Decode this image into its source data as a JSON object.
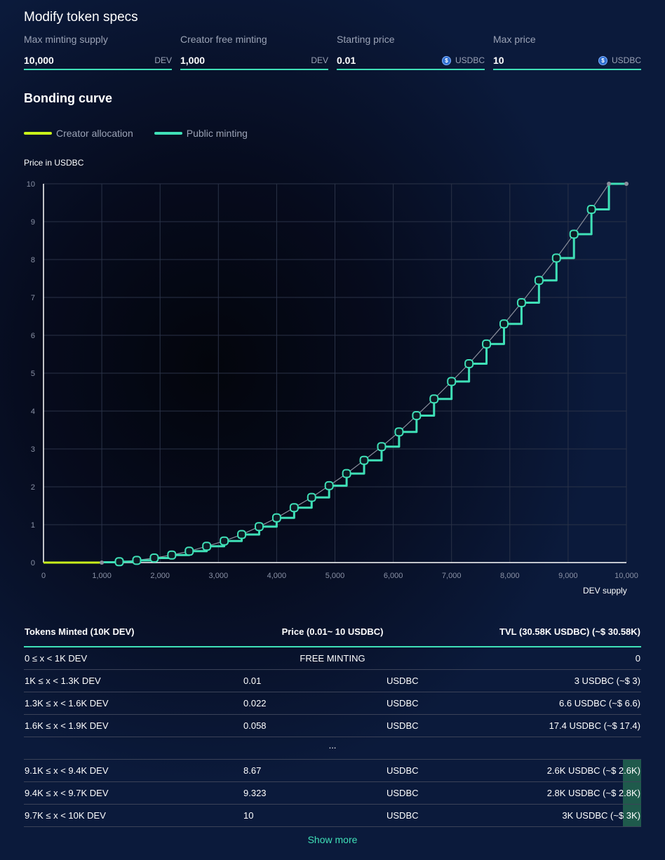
{
  "spec": {
    "title": "Modify token specs",
    "fields": [
      {
        "label": "Max minting supply",
        "value": "10,000",
        "unit": "DEV",
        "coin": false
      },
      {
        "label": "Creator free minting",
        "value": "1,000",
        "unit": "DEV",
        "coin": false
      },
      {
        "label": "Starting price",
        "value": "0.01",
        "unit": "USDBC",
        "coin": true
      },
      {
        "label": "Max price",
        "value": "10",
        "unit": "USDBC",
        "coin": true
      }
    ]
  },
  "curve": {
    "title": "Bonding curve",
    "legend": [
      {
        "label": "Creator allocation",
        "color": "#c9f21a"
      },
      {
        "label": "Public minting",
        "color": "#3fe0b7"
      }
    ]
  },
  "chart_data": {
    "type": "line",
    "ylabel": "Price in USDBC",
    "xlabel": "DEV supply",
    "xlim": [
      0,
      10000
    ],
    "ylim": [
      0,
      10
    ],
    "x_ticks": [
      "0",
      "1,000",
      "2,000",
      "3,000",
      "4,000",
      "5,000",
      "6,000",
      "7,000",
      "8,000",
      "9,000",
      "10,000"
    ],
    "y_ticks": [
      "0",
      "1",
      "2",
      "3",
      "4",
      "5",
      "6",
      "7",
      "8",
      "9",
      "10"
    ],
    "grid": true,
    "series": [
      {
        "name": "Creator allocation",
        "x": [
          0,
          1000
        ],
        "y": [
          0,
          0
        ]
      },
      {
        "name": "Public minting",
        "step_width": 300,
        "x": [
          1000,
          1300,
          1600,
          1900,
          2200,
          2500,
          2800,
          3100,
          3400,
          3700,
          4000,
          4300,
          4600,
          4900,
          5200,
          5500,
          5800,
          6100,
          6400,
          6700,
          7000,
          7300,
          7600,
          7900,
          8200,
          8500,
          8800,
          9100,
          9400,
          9700
        ],
        "y": [
          0.01,
          0.022,
          0.058,
          0.12,
          0.2,
          0.3,
          0.43,
          0.57,
          0.74,
          0.95,
          1.18,
          1.45,
          1.72,
          2.03,
          2.35,
          2.7,
          3.06,
          3.45,
          3.88,
          4.32,
          4.78,
          5.25,
          5.77,
          6.3,
          6.86,
          7.45,
          8.04,
          8.67,
          9.323,
          10
        ]
      }
    ]
  },
  "table": {
    "headers": {
      "tokens": "Tokens Minted (10K DEV)",
      "price": "Price (0.01~ 10 USDBC)",
      "tvl": "TVL (30.58K USDBC) (~$ 30.58K)"
    },
    "free_row": {
      "range": "0 ≤ x < 1K DEV",
      "label": "FREE MINTING",
      "tvl": "0"
    },
    "rows_top": [
      {
        "range": "1K ≤ x < 1.3K DEV",
        "price": "0.01",
        "unit": "USDBC",
        "tvl": "3 USDBC (~$ 3)"
      },
      {
        "range": "1.3K ≤ x < 1.6K DEV",
        "price": "0.022",
        "unit": "USDBC",
        "tvl": "6.6 USDBC (~$ 6.6)"
      },
      {
        "range": "1.6K ≤ x < 1.9K DEV",
        "price": "0.058",
        "unit": "USDBC",
        "tvl": "17.4 USDBC (~$ 17.4)"
      }
    ],
    "ellipsis": "...",
    "rows_bottom": [
      {
        "range": "9.1K ≤ x < 9.4K DEV",
        "price": "8.67",
        "unit": "USDBC",
        "tvl": "2.6K USDBC (~$ 2.6K)"
      },
      {
        "range": "9.4K ≤ x < 9.7K DEV",
        "price": "9.323",
        "unit": "USDBC",
        "tvl": "2.8K USDBC (~$ 2.8K)"
      },
      {
        "range": "9.7K ≤ x < 10K DEV",
        "price": "10",
        "unit": "USDBC",
        "tvl": "3K USDBC (~$ 3K)"
      }
    ],
    "show_more": "Show more"
  }
}
